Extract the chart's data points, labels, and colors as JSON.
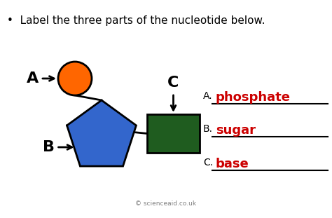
{
  "title": "Label the three parts of the nucleotide below.",
  "title_fontsize": 11,
  "background_color": "#ffffff",
  "pentagon_color": "#3366cc",
  "circle_color": "#ff6600",
  "rect_color": "#1f5c1f",
  "label_A": "A",
  "label_B": "B",
  "label_C": "C",
  "answer_A": "phosphate",
  "answer_B": "sugar",
  "answer_C": "base",
  "answer_color": "#cc0000",
  "answer_fontsize": 13,
  "label_fontsize": 13,
  "footer": "© scienceaid.co.uk",
  "footer_fontsize": 6.5,
  "fig_width": 4.74,
  "fig_height": 3.11,
  "dpi": 100
}
